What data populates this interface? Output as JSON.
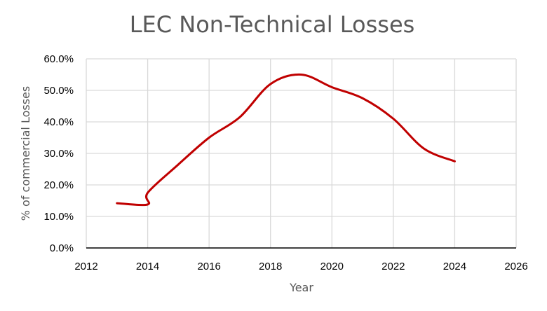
{
  "chart_data": {
    "type": "line",
    "title": "LEC Non-Technical Losses",
    "xlabel": "Year",
    "ylabel": "% of commercial Losses",
    "xlim": [
      2012,
      2026
    ],
    "ylim": [
      0,
      60
    ],
    "x_ticks": [
      2012,
      2014,
      2016,
      2018,
      2020,
      2022,
      2024,
      2026
    ],
    "x_tick_labels": [
      "2012",
      "2014",
      "2016",
      "2018",
      "2020",
      "2022",
      "2024",
      "2026"
    ],
    "y_ticks": [
      0,
      10,
      20,
      30,
      40,
      50,
      60
    ],
    "y_tick_labels": [
      "0.0%",
      "10.0%",
      "20.0%",
      "30.0%",
      "40.0%",
      "50.0%",
      "60.0%"
    ],
    "grid": true,
    "smooth": true,
    "series": [
      {
        "name": "Non-Technical Losses",
        "color": "#c00000",
        "x": [
          2013,
          2014,
          2014,
          2015,
          2016,
          2017,
          2018,
          2019,
          2020,
          2021,
          2022,
          2023,
          2024
        ],
        "y": [
          14.2,
          13.8,
          17.5,
          26.5,
          35.0,
          41.5,
          52.0,
          55.0,
          51.0,
          47.5,
          41.0,
          31.5,
          27.5
        ]
      }
    ]
  }
}
